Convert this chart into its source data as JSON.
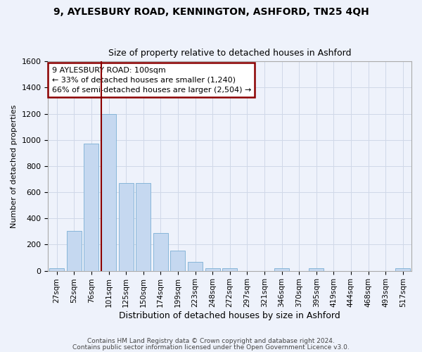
{
  "title1": "9, AYLESBURY ROAD, KENNINGTON, ASHFORD, TN25 4QH",
  "title2": "Size of property relative to detached houses in Ashford",
  "xlabel": "Distribution of detached houses by size in Ashford",
  "ylabel": "Number of detached properties",
  "footnote1": "Contains HM Land Registry data © Crown copyright and database right 2024.",
  "footnote2": "Contains public sector information licensed under the Open Government Licence v3.0.",
  "annotation_line1": "9 AYLESBURY ROAD: 100sqm",
  "annotation_line2": "← 33% of detached houses are smaller (1,240)",
  "annotation_line3": "66% of semi-detached houses are larger (2,504) →",
  "bar_labels": [
    "27sqm",
    "52sqm",
    "76sqm",
    "101sqm",
    "125sqm",
    "150sqm",
    "174sqm",
    "199sqm",
    "223sqm",
    "248sqm",
    "272sqm",
    "297sqm",
    "321sqm",
    "346sqm",
    "370sqm",
    "395sqm",
    "419sqm",
    "444sqm",
    "468sqm",
    "493sqm",
    "517sqm"
  ],
  "bar_values": [
    20,
    305,
    970,
    1200,
    670,
    670,
    290,
    155,
    70,
    20,
    20,
    0,
    0,
    20,
    0,
    20,
    0,
    0,
    0,
    0,
    20
  ],
  "bar_color": "#c5d8f0",
  "bar_edge_color": "#7bafd4",
  "vline_color": "#8b0000",
  "vline_bar_index": 3,
  "annotation_box_edge_color": "#8b0000",
  "background_color": "#eef2fb",
  "ylim": [
    0,
    1600
  ],
  "yticks": [
    0,
    200,
    400,
    600,
    800,
    1000,
    1200,
    1400,
    1600
  ],
  "grid_color": "#d0d8e8",
  "title1_fontsize": 10,
  "title2_fontsize": 9,
  "xlabel_fontsize": 9,
  "ylabel_fontsize": 8,
  "tick_fontsize": 8,
  "xtick_fontsize": 7.5,
  "footnote_fontsize": 6.5,
  "annot_fontsize": 8
}
